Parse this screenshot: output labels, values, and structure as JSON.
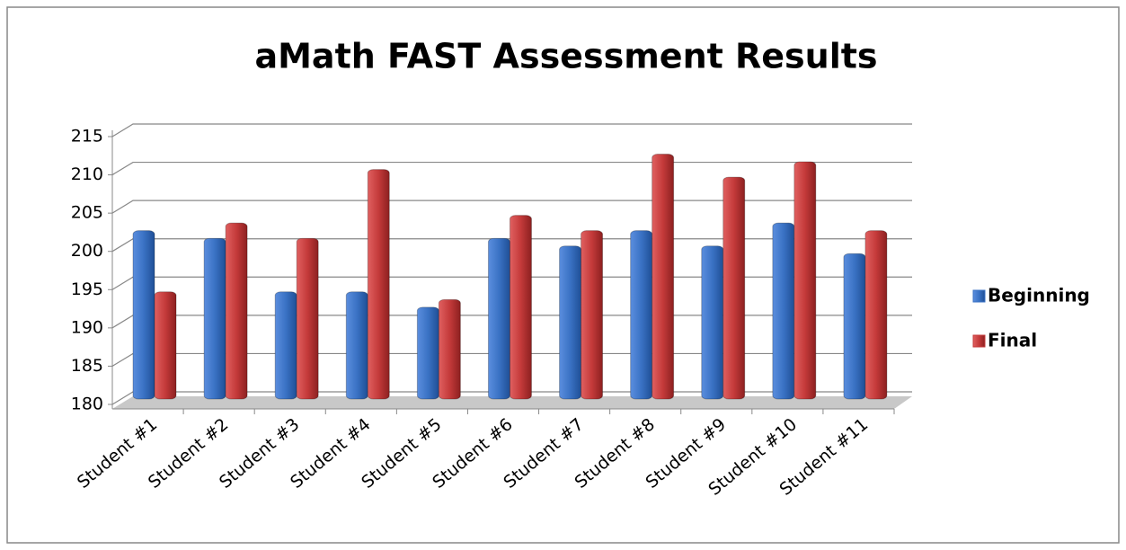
{
  "chart_data": {
    "type": "bar",
    "title": "aMath FAST Assessment Results",
    "categories": [
      "Student #1",
      "Student #2",
      "Student #3",
      "Student #4",
      "Student #5",
      "Student #6",
      "Student #7",
      "Student #8",
      "Student #9",
      "Student #10",
      "Student #11"
    ],
    "series": [
      {
        "name": "Beginning",
        "color": "#3a72c4",
        "values": [
          202,
          201,
          194,
          194,
          192,
          201,
          200,
          202,
          200,
          203,
          199
        ]
      },
      {
        "name": "Final",
        "color": "#c43a3a",
        "values": [
          194,
          203,
          201,
          210,
          193,
          204,
          202,
          212,
          209,
          211,
          202
        ]
      }
    ],
    "ylim": [
      180,
      215
    ],
    "yticks": [
      180,
      185,
      190,
      195,
      200,
      205,
      210,
      215
    ],
    "grid": true,
    "legend": "right"
  }
}
